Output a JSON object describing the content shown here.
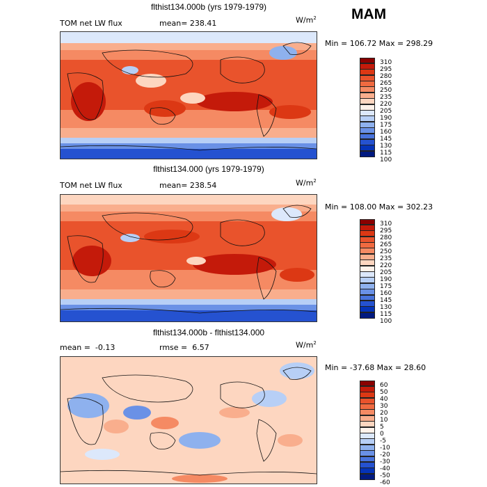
{
  "season": "MAM",
  "panels": [
    {
      "title": "flthist134.000b (yrs 1979-1979)",
      "left_label": "TOM net LW flux",
      "stat_label": "mean=",
      "stat_value": "238.41",
      "units": "W/m",
      "units_sup": "2",
      "minmax": "Min = 106.72 Max = 298.29",
      "colorbar": {
        "labels": [
          "310",
          "295",
          "280",
          "265",
          "250",
          "235",
          "220",
          "205",
          "190",
          "175",
          "160",
          "145",
          "130",
          "115",
          "100"
        ],
        "colors": [
          "#8a0000",
          "#c41a0a",
          "#dc3814",
          "#e9532c",
          "#f06a40",
          "#f58a63",
          "#f9ae8d",
          "#fdd6c0",
          "#fff2ea",
          "#dce8fb",
          "#b7cff6",
          "#8eb1ee",
          "#6a91e6",
          "#4873dc",
          "#2552d0",
          "#0533b8",
          "#011a80"
        ]
      }
    },
    {
      "title": "flthist134.000 (yrs 1979-1979)",
      "left_label": "TOM net LW flux",
      "stat_label": "mean=",
      "stat_value": "238.54",
      "units": "W/m",
      "units_sup": "2",
      "minmax": "Min = 108.00 Max = 302.23",
      "colorbar": {
        "labels": [
          "310",
          "295",
          "280",
          "265",
          "250",
          "235",
          "220",
          "205",
          "190",
          "175",
          "160",
          "145",
          "130",
          "115",
          "100"
        ],
        "colors": [
          "#8a0000",
          "#c41a0a",
          "#dc3814",
          "#e9532c",
          "#f06a40",
          "#f58a63",
          "#f9ae8d",
          "#fdd6c0",
          "#fff2ea",
          "#dce8fb",
          "#b7cff6",
          "#8eb1ee",
          "#6a91e6",
          "#4873dc",
          "#2552d0",
          "#0533b8",
          "#011a80"
        ]
      }
    },
    {
      "title": "flthist134.000b - flthist134.000",
      "left_label": "mean =",
      "left_value": "-0.13",
      "stat_label": "rmse =",
      "stat_value": "6.57",
      "units": "W/m",
      "units_sup": "2",
      "minmax": "Min = -37.68 Max =  28.60",
      "colorbar": {
        "labels": [
          "60",
          "50",
          "40",
          "30",
          "20",
          "10",
          "5",
          "0",
          "-5",
          "-10",
          "-20",
          "-30",
          "-40",
          "-50",
          "-60"
        ],
        "colors": [
          "#8a0000",
          "#c41a0a",
          "#dc3814",
          "#e9532c",
          "#f06a40",
          "#f58a63",
          "#f9ae8d",
          "#fdd6c0",
          "#fff2ea",
          "#dce8fb",
          "#b7cff6",
          "#8eb1ee",
          "#6a91e6",
          "#4873dc",
          "#2552d0",
          "#0533b8",
          "#011a80"
        ]
      }
    }
  ]
}
